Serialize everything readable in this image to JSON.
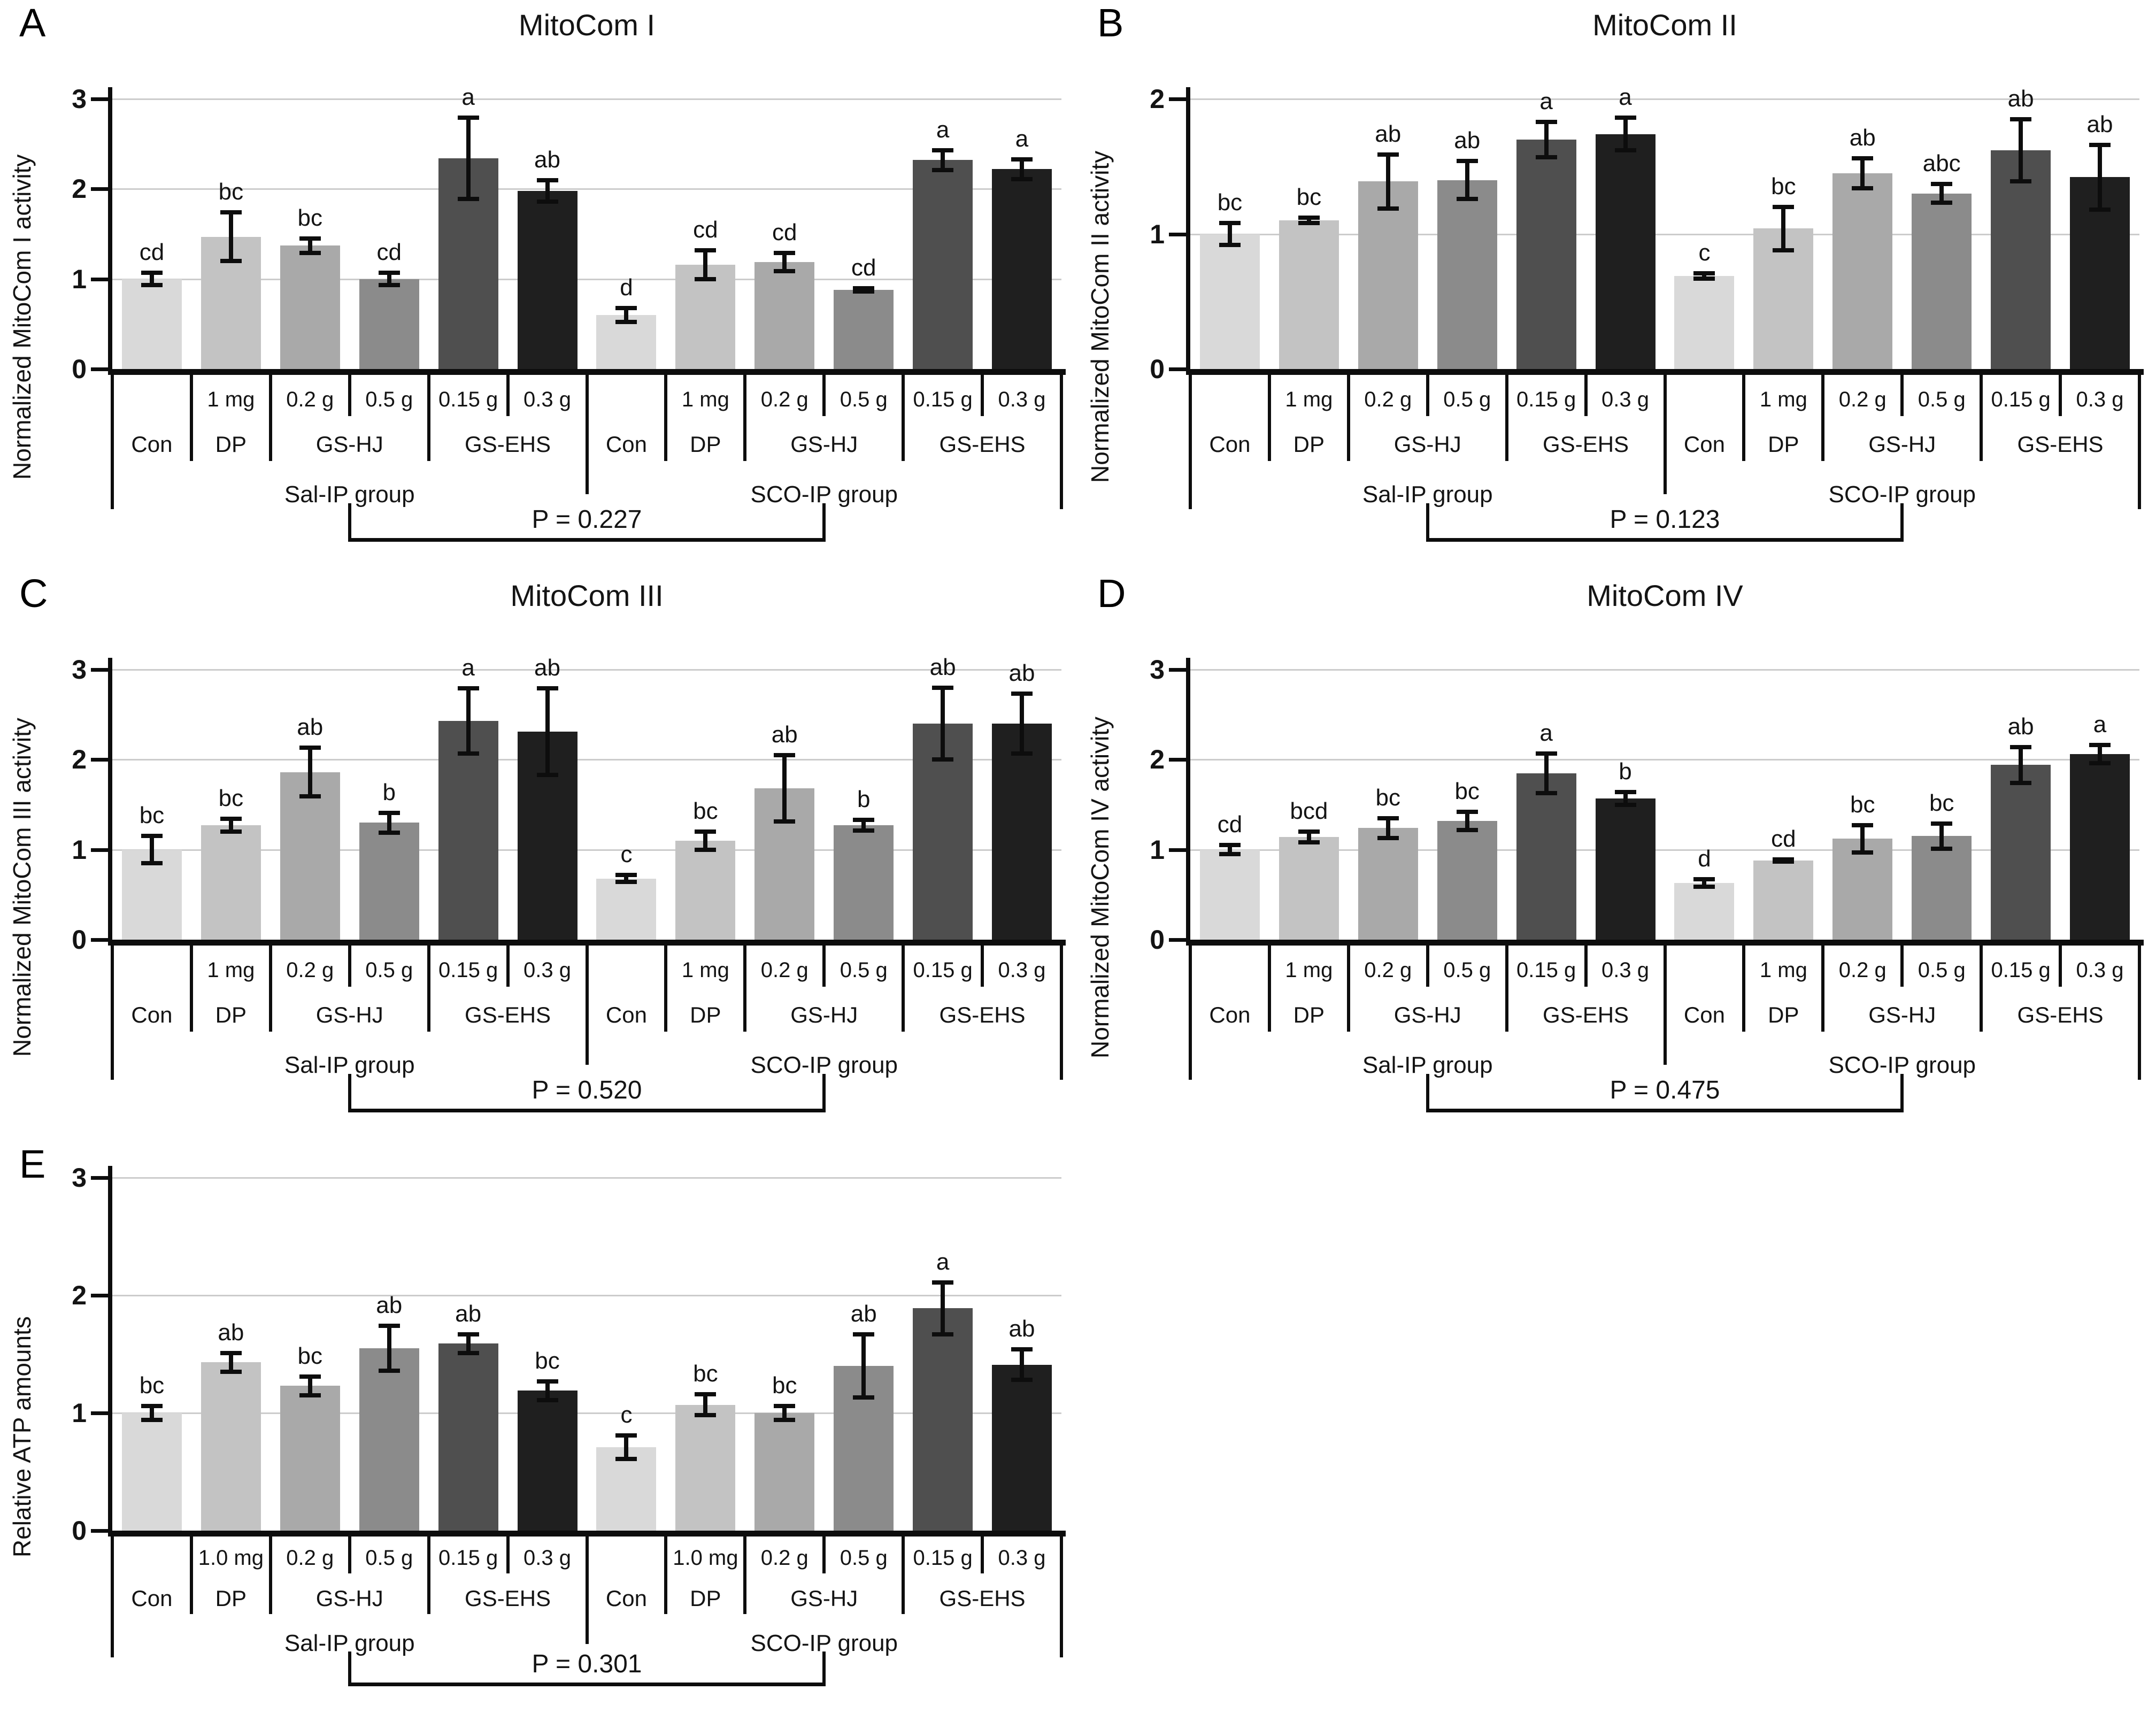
{
  "figure": {
    "background_color": "#ffffff",
    "text_color": "#141414",
    "axis_color": "#0d0d0d",
    "gridline_color": "#cccccc"
  },
  "bar_colors": [
    "#d9d9d9",
    "#c3c3c3",
    "#a9a9a9",
    "#8b8b8b",
    "#4f4f4f",
    "#1f1f1f",
    "#d9d9d9",
    "#c3c3c3",
    "#a9a9a9",
    "#8b8b8b",
    "#4f4f4f",
    "#1f1f1f"
  ],
  "chart_data": [
    {
      "type": "bar",
      "panel_letter": "A",
      "title": "MitoCom I",
      "ylabel": "Normalized MitoCom I activity",
      "xlabel": "",
      "ylim": [
        0,
        3
      ],
      "yticks": [
        0,
        1,
        2,
        3
      ],
      "grid": true,
      "legend": "none",
      "groups": [
        "Sal-IP group",
        "SCO-IP group"
      ],
      "treatment_row": [
        {
          "label": "Con",
          "span": 1
        },
        {
          "label": "DP",
          "span": 1
        },
        {
          "label": "GS-HJ",
          "span": 2
        },
        {
          "label": "GS-EHS",
          "span": 2
        },
        {
          "label": "Con",
          "span": 1
        },
        {
          "label": "DP",
          "span": 1
        },
        {
          "label": "GS-HJ",
          "span": 2
        },
        {
          "label": "GS-EHS",
          "span": 2
        }
      ],
      "dose_row": [
        "",
        "1 mg",
        "0.2 g",
        "0.5 g",
        "0.15 g",
        "0.3 g",
        "",
        "1 mg",
        "0.2 g",
        "0.5 g",
        "0.15 g",
        "0.3 g"
      ],
      "values": [
        1.0,
        1.47,
        1.37,
        1.0,
        2.34,
        1.98,
        0.6,
        1.16,
        1.19,
        0.88,
        2.32,
        2.22
      ],
      "errors": [
        0.07,
        0.27,
        0.08,
        0.07,
        0.45,
        0.12,
        0.08,
        0.16,
        0.1,
        0.02,
        0.11,
        0.11
      ],
      "sig_letters": [
        "cd",
        "bc",
        "bc",
        "cd",
        "a",
        "ab",
        "d",
        "cd",
        "cd",
        "cd",
        "a",
        "a"
      ],
      "p_label": "P = 0.227"
    },
    {
      "type": "bar",
      "panel_letter": "B",
      "title": "MitoCom II",
      "ylabel": "Normalized MitoCom II activity",
      "xlabel": "",
      "ylim": [
        0,
        2
      ],
      "yticks": [
        0,
        1,
        2
      ],
      "grid": true,
      "legend": "none",
      "groups": [
        "Sal-IP group",
        "SCO-IP group"
      ],
      "treatment_row": [
        {
          "label": "Con",
          "span": 1
        },
        {
          "label": "DP",
          "span": 1
        },
        {
          "label": "GS-HJ",
          "span": 2
        },
        {
          "label": "GS-EHS",
          "span": 2
        },
        {
          "label": "Con",
          "span": 1
        },
        {
          "label": "DP",
          "span": 1
        },
        {
          "label": "GS-HJ",
          "span": 2
        },
        {
          "label": "GS-EHS",
          "span": 2
        }
      ],
      "dose_row": [
        "",
        "1 mg",
        "0.2 g",
        "0.5 g",
        "0.15 g",
        "0.3 g",
        "",
        "1 mg",
        "0.2 g",
        "0.5 g",
        "0.15 g",
        "0.3 g"
      ],
      "values": [
        1.0,
        1.1,
        1.39,
        1.4,
        1.7,
        1.74,
        0.69,
        1.04,
        1.45,
        1.3,
        1.62,
        1.42
      ],
      "errors": [
        0.08,
        0.02,
        0.2,
        0.14,
        0.13,
        0.12,
        0.02,
        0.16,
        0.11,
        0.07,
        0.23,
        0.24
      ],
      "sig_letters": [
        "bc",
        "bc",
        "ab",
        "ab",
        "a",
        "a",
        "c",
        "bc",
        "ab",
        "abc",
        "ab",
        "ab"
      ],
      "p_label": "P = 0.123"
    },
    {
      "type": "bar",
      "panel_letter": "C",
      "title": "MitoCom III",
      "ylabel": "Normalized MitoCom III activity",
      "xlabel": "",
      "ylim": [
        0,
        3
      ],
      "yticks": [
        0,
        1,
        2,
        3
      ],
      "grid": true,
      "legend": "none",
      "groups": [
        "Sal-IP group",
        "SCO-IP group"
      ],
      "treatment_row": [
        {
          "label": "Con",
          "span": 1
        },
        {
          "label": "DP",
          "span": 1
        },
        {
          "label": "GS-HJ",
          "span": 2
        },
        {
          "label": "GS-EHS",
          "span": 2
        },
        {
          "label": "Con",
          "span": 1
        },
        {
          "label": "DP",
          "span": 1
        },
        {
          "label": "GS-HJ",
          "span": 2
        },
        {
          "label": "GS-EHS",
          "span": 2
        }
      ],
      "dose_row": [
        "",
        "1 mg",
        "0.2 g",
        "0.5 g",
        "0.15 g",
        "0.3 g",
        "",
        "1 mg",
        "0.2 g",
        "0.5 g",
        "0.15 g",
        "0.3 g"
      ],
      "values": [
        1.0,
        1.27,
        1.86,
        1.3,
        2.43,
        2.31,
        0.68,
        1.1,
        1.68,
        1.27,
        2.4,
        2.4
      ],
      "errors": [
        0.15,
        0.07,
        0.27,
        0.11,
        0.36,
        0.48,
        0.04,
        0.1,
        0.37,
        0.06,
        0.4,
        0.33
      ],
      "sig_letters": [
        "bc",
        "bc",
        "ab",
        "b",
        "a",
        "ab",
        "c",
        "bc",
        "ab",
        "b",
        "ab",
        "ab"
      ],
      "p_label": "P = 0.520"
    },
    {
      "type": "bar",
      "panel_letter": "D",
      "title": "MitoCom IV",
      "ylabel": "Normalized MitoCom IV activity",
      "xlabel": "",
      "ylim": [
        0,
        3
      ],
      "yticks": [
        0,
        1,
        2,
        3
      ],
      "grid": true,
      "legend": "none",
      "groups": [
        "Sal-IP group",
        "SCO-IP group"
      ],
      "treatment_row": [
        {
          "label": "Con",
          "span": 1
        },
        {
          "label": "DP",
          "span": 1
        },
        {
          "label": "GS-HJ",
          "span": 2
        },
        {
          "label": "GS-EHS",
          "span": 2
        },
        {
          "label": "Con",
          "span": 1
        },
        {
          "label": "DP",
          "span": 1
        },
        {
          "label": "GS-HJ",
          "span": 2
        },
        {
          "label": "GS-EHS",
          "span": 2
        }
      ],
      "dose_row": [
        "",
        "1 mg",
        "0.2 g",
        "0.5 g",
        "0.15 g",
        "0.3 g",
        "",
        "1 mg",
        "0.2 g",
        "0.5 g",
        "0.15 g",
        "0.3 g"
      ],
      "values": [
        1.0,
        1.14,
        1.24,
        1.32,
        1.85,
        1.57,
        0.63,
        0.88,
        1.12,
        1.15,
        1.94,
        2.06
      ],
      "errors": [
        0.05,
        0.06,
        0.11,
        0.1,
        0.22,
        0.07,
        0.04,
        0.01,
        0.15,
        0.14,
        0.2,
        0.1
      ],
      "sig_letters": [
        "cd",
        "bcd",
        "bc",
        "bc",
        "a",
        "b",
        "d",
        "cd",
        "bc",
        "bc",
        "ab",
        "a"
      ],
      "p_label": "P = 0.475"
    },
    {
      "type": "bar",
      "panel_letter": "E",
      "title": "",
      "ylabel": "Relative ATP amounts",
      "xlabel": "",
      "ylim": [
        0,
        3
      ],
      "yticks": [
        0,
        1,
        2,
        3
      ],
      "grid": true,
      "legend": "none",
      "groups": [
        "Sal-IP group",
        "SCO-IP group"
      ],
      "treatment_row": [
        {
          "label": "Con",
          "span": 1
        },
        {
          "label": "DP",
          "span": 1
        },
        {
          "label": "GS-HJ",
          "span": 2
        },
        {
          "label": "GS-EHS",
          "span": 2
        },
        {
          "label": "Con",
          "span": 1
        },
        {
          "label": "DP",
          "span": 1
        },
        {
          "label": "GS-HJ",
          "span": 2
        },
        {
          "label": "GS-EHS",
          "span": 2
        }
      ],
      "dose_row": [
        "",
        "1.0 mg",
        "0.2 g",
        "0.5 g",
        "0.15 g",
        "0.3 g",
        "",
        "1.0 mg",
        "0.2 g",
        "0.5 g",
        "0.15 g",
        "0.3 g"
      ],
      "values": [
        1.0,
        1.43,
        1.23,
        1.55,
        1.59,
        1.19,
        0.71,
        1.07,
        1.0,
        1.4,
        1.89,
        1.41
      ],
      "errors": [
        0.06,
        0.08,
        0.08,
        0.19,
        0.08,
        0.08,
        0.1,
        0.09,
        0.06,
        0.27,
        0.22,
        0.13
      ],
      "sig_letters": [
        "bc",
        "ab",
        "bc",
        "ab",
        "ab",
        "bc",
        "c",
        "bc",
        "bc",
        "ab",
        "a",
        "ab"
      ],
      "p_label": "P = 0.301"
    }
  ]
}
